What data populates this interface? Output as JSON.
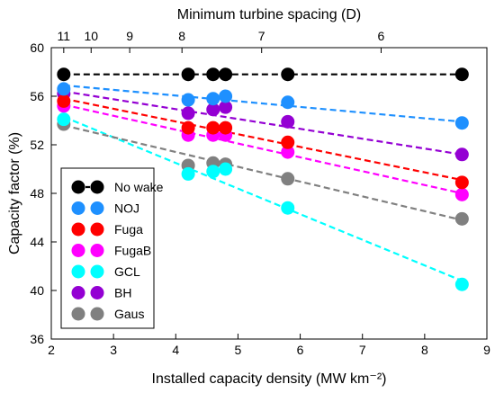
{
  "chart_data": {
    "type": "scatter",
    "xlabel": "Installed capacity density (MW km⁻²)",
    "ylabel": "Capacity factor (%)",
    "x2label": "Minimum turbine spacing (D)",
    "xlim": [
      2,
      9
    ],
    "ylim": [
      36,
      60
    ],
    "xticks": [
      2,
      3,
      4,
      5,
      6,
      7,
      8,
      9
    ],
    "yticks": [
      36,
      40,
      44,
      48,
      52,
      56,
      60
    ],
    "x2ticks": [
      {
        "label": "11",
        "x": 2.2
      },
      {
        "label": "10",
        "x": 2.64
      },
      {
        "label": "9",
        "x": 3.26
      },
      {
        "label": "8",
        "x": 4.1
      },
      {
        "label": "7",
        "x": 5.38
      },
      {
        "label": "6",
        "x": 7.3
      }
    ],
    "grid": false,
    "legend_position": "bottom-left",
    "series": [
      {
        "name": "No wake",
        "color": "#000000",
        "x": [
          2.2,
          4.2,
          4.6,
          4.8,
          5.8,
          8.6
        ],
        "y": [
          57.8,
          57.8,
          57.8,
          57.8,
          57.8,
          57.8
        ],
        "fit": [
          57.8,
          57.8
        ]
      },
      {
        "name": "NOJ",
        "color": "#1E90FF",
        "x": [
          2.2,
          4.2,
          4.6,
          4.8,
          5.8,
          8.6
        ],
        "y": [
          56.6,
          55.7,
          55.8,
          56.0,
          55.5,
          53.8
        ],
        "fit": [
          56.9,
          53.9
        ]
      },
      {
        "name": "Fuga",
        "color": "#FF0000",
        "x": [
          2.2,
          4.2,
          4.6,
          4.8,
          5.8,
          8.6
        ],
        "y": [
          55.6,
          53.4,
          53.4,
          53.4,
          52.2,
          48.9
        ],
        "fit": [
          55.8,
          49.1
        ]
      },
      {
        "name": "FugaB",
        "color": "#FF00FF",
        "x": [
          2.2,
          4.2,
          4.6,
          4.8,
          5.8,
          8.6
        ],
        "y": [
          55.2,
          52.8,
          52.8,
          52.8,
          51.4,
          47.9
        ],
        "fit": [
          55.3,
          48.0
        ]
      },
      {
        "name": "GCL",
        "color": "#00FFFF",
        "x": [
          2.2,
          4.2,
          4.6,
          4.8,
          5.8,
          8.6
        ],
        "y": [
          54.1,
          49.6,
          49.8,
          50.0,
          46.8,
          40.5
        ],
        "fit": [
          54.3,
          40.8
        ]
      },
      {
        "name": "BH",
        "color": "#9400D3",
        "x": [
          2.2,
          4.2,
          4.6,
          4.8,
          5.8,
          8.6
        ],
        "y": [
          56.2,
          54.6,
          54.9,
          55.1,
          53.9,
          51.2
        ],
        "fit": [
          56.4,
          51.2
        ]
      },
      {
        "name": "Gaus",
        "color": "#808080",
        "x": [
          2.2,
          4.2,
          4.6,
          4.8,
          5.8,
          8.6
        ],
        "y": [
          53.7,
          50.3,
          50.5,
          50.4,
          49.2,
          45.9
        ],
        "fit": [
          53.6,
          45.8
        ]
      }
    ]
  }
}
